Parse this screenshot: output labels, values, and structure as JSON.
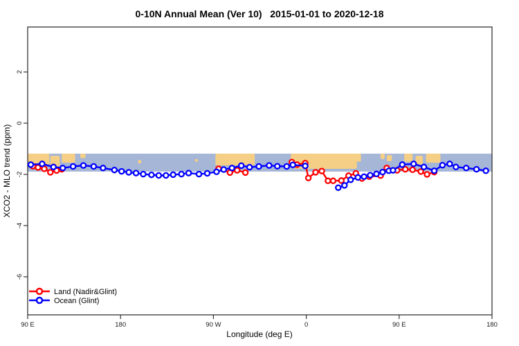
{
  "title": "0-10N Annual Mean (Ver 10)   2015-01-01 to 2020-12-18",
  "chart_data": {
    "type": "line",
    "title": "0-10N Annual Mean (Ver 10)   2015-01-01 to 2020-12-18",
    "xlabel": "Longitude (deg E)",
    "ylabel": "XCO2 - MLO trend (ppm)",
    "xlim": [
      90,
      540
    ],
    "ylim": [
      -7.5,
      3.8
    ],
    "grid": false,
    "x_ticks": [
      {
        "lon": 90,
        "label": "90 E"
      },
      {
        "lon": 180,
        "label": "180"
      },
      {
        "lon": 270,
        "label": "90 W"
      },
      {
        "lon": 360,
        "label": "0"
      },
      {
        "lon": 450,
        "label": "90 E"
      },
      {
        "lon": 540,
        "label": "180"
      }
    ],
    "y_ticks": [
      2,
      0,
      -2,
      -4,
      -6
    ],
    "legend": {
      "position": "bottom-left",
      "entries": [
        {
          "label": "Land (Nadir&Glint)",
          "color": "#ff0000"
        },
        {
          "label": "Ocean (Glint)",
          "color": "#0000ff"
        }
      ]
    },
    "series": [
      {
        "name": "Land (Nadir&Glint)",
        "color": "#ff0000",
        "marker": "open-circle",
        "segments": [
          [
            [
              95,
              -1.68
            ],
            [
              100,
              -1.73
            ],
            [
              106,
              -1.78
            ],
            [
              112,
              -1.92
            ],
            [
              118,
              -1.85
            ],
            [
              123,
              -1.8
            ]
          ],
          [
            [
              275,
              -1.78
            ],
            [
              286,
              -1.93
            ],
            [
              293,
              -1.84
            ],
            [
              301,
              -1.93
            ]
          ],
          [
            [
              346,
              -1.52
            ],
            [
              351,
              -1.62
            ],
            [
              359,
              -1.56
            ],
            [
              362,
              -2.14
            ],
            [
              369,
              -1.92
            ],
            [
              375,
              -1.87
            ],
            [
              381,
              -2.25
            ],
            [
              386,
              -2.25
            ],
            [
              394,
              -2.24
            ],
            [
              401,
              -2.05
            ],
            [
              408,
              -1.96
            ],
            [
              414,
              -2.16
            ],
            [
              421,
              -2.09
            ],
            [
              432,
              -2.05
            ],
            [
              438,
              -1.75
            ],
            [
              448,
              -1.84
            ],
            [
              456,
              -1.8
            ],
            [
              463,
              -1.82
            ],
            [
              471,
              -1.89
            ],
            [
              477,
              -2.0
            ],
            [
              484,
              -1.91
            ]
          ]
        ]
      },
      {
        "name": "Ocean (Glint)",
        "color": "#0000ff",
        "marker": "open-circle",
        "segments": [
          [
            [
              93,
              -1.62
            ],
            [
              104,
              -1.59
            ],
            [
              115,
              -1.71
            ],
            [
              124,
              -1.75
            ],
            [
              134,
              -1.69
            ],
            [
              144,
              -1.65
            ],
            [
              154,
              -1.69
            ],
            [
              163,
              -1.75
            ],
            [
              174,
              -1.83
            ],
            [
              181,
              -1.88
            ],
            [
              188,
              -1.92
            ],
            [
              195,
              -1.95
            ],
            [
              202,
              -1.99
            ],
            [
              210,
              -2.02
            ],
            [
              217,
              -2.04
            ],
            [
              224,
              -2.04
            ],
            [
              231,
              -2.01
            ],
            [
              239,
              -1.99
            ],
            [
              246,
              -1.95
            ],
            [
              256,
              -1.99
            ],
            [
              264,
              -1.96
            ],
            [
              273,
              -1.9
            ],
            [
              280,
              -1.81
            ],
            [
              288,
              -1.75
            ],
            [
              297,
              -1.66
            ],
            [
              305,
              -1.72
            ],
            [
              314,
              -1.69
            ],
            [
              324,
              -1.65
            ],
            [
              332,
              -1.68
            ],
            [
              341,
              -1.69
            ],
            [
              347,
              -1.63
            ],
            [
              359,
              -1.67
            ]
          ],
          [
            [
              391,
              -2.52
            ],
            [
              397,
              -2.43
            ],
            [
              403,
              -2.21
            ],
            [
              410,
              -2.12
            ],
            [
              416,
              -2.09
            ],
            [
              422,
              -2.03
            ],
            [
              428,
              -1.98
            ],
            [
              434,
              -1.91
            ],
            [
              440,
              -1.86
            ],
            [
              444,
              -1.84
            ],
            [
              453,
              -1.62
            ],
            [
              464,
              -1.59
            ],
            [
              474,
              -1.71
            ],
            [
              484,
              -1.86
            ],
            [
              492,
              -1.64
            ],
            [
              499,
              -1.59
            ],
            [
              505,
              -1.71
            ],
            [
              515,
              -1.75
            ],
            [
              525,
              -1.8
            ],
            [
              534,
              -1.86
            ]
          ]
        ]
      }
    ],
    "map_band": {
      "description": "0-10N latitude world-map strip drawn across the plot",
      "ppm_top": -1.19,
      "ppm_bottom": -1.89,
      "ocean_color": "#a6b6d6",
      "land_color": "#f5cf85",
      "land_patches": [
        [
          90,
          111,
          0.0,
          0.6
        ],
        [
          112,
          121,
          0.12,
          0.72
        ],
        [
          123,
          136,
          0.0,
          0.5
        ],
        [
          141,
          146,
          0.0,
          0.25
        ],
        [
          197,
          200,
          0.35,
          0.55
        ],
        [
          252,
          255,
          0.3,
          0.45
        ],
        [
          272,
          310,
          0.0,
          0.65
        ],
        [
          304,
          310,
          0.0,
          0.35
        ],
        [
          345,
          350,
          0.0,
          0.4
        ],
        [
          348,
          409,
          0.0,
          0.85
        ],
        [
          407,
          413,
          0.0,
          0.45
        ],
        [
          432,
          436,
          0.0,
          0.3
        ],
        [
          438,
          443,
          0.08,
          0.42
        ],
        [
          455,
          463,
          0.0,
          0.45
        ],
        [
          466,
          473,
          0.12,
          0.6
        ],
        [
          476,
          490,
          0.0,
          0.5
        ]
      ]
    },
    "axis_color": "#333333",
    "background": "#ffffff"
  }
}
